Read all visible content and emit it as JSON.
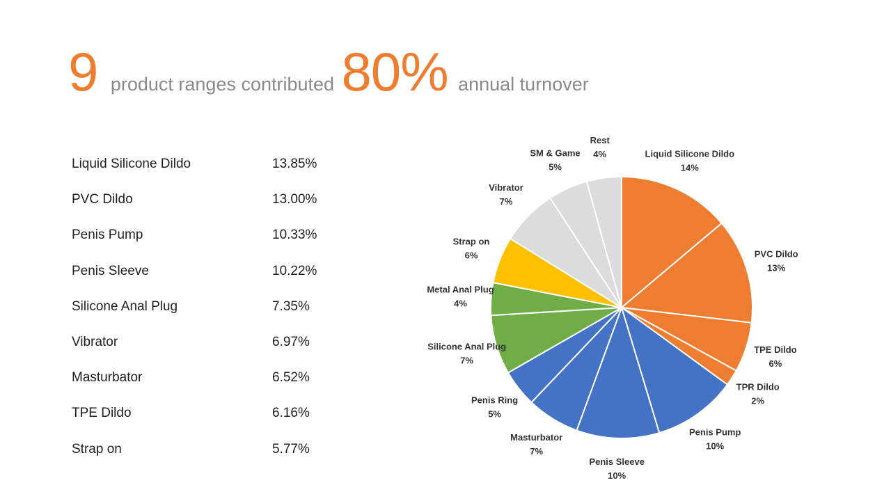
{
  "headline": {
    "count": "9",
    "text1": "product ranges contributed",
    "percent": "80%",
    "text2": "annual turnover"
  },
  "table": {
    "rows": [
      {
        "name": "Liquid Silicone Dildo",
        "value": "13.85%"
      },
      {
        "name": "PVC Dildo",
        "value": "13.00%"
      },
      {
        "name": "Penis Pump",
        "value": "10.33%"
      },
      {
        "name": "Penis Sleeve",
        "value": "10.22%"
      },
      {
        "name": "Silicone Anal Plug",
        "value": "7.35%"
      },
      {
        "name": "Vibrator",
        "value": "6.97%"
      },
      {
        "name": "Masturbator",
        "value": "6.52%"
      },
      {
        "name": "TPE Dildo",
        "value": "6.16%"
      },
      {
        "name": "Strap on",
        "value": "5.77%"
      }
    ]
  },
  "colors": {
    "accent": "#ED7D31",
    "orange": "#ED7D31",
    "blue": "#4472C4",
    "green": "#70AD47",
    "yellow": "#FFC000",
    "gray": "#DCDCDC"
  },
  "chart_data": {
    "type": "pie",
    "title": "",
    "start_angle_deg": 0,
    "direction": "clockwise",
    "slices": [
      {
        "name": "Liquid Silicone Dildo",
        "value": 13.85,
        "label": "14%",
        "color": "#ED7D31"
      },
      {
        "name": "PVC Dildo",
        "value": 13.0,
        "label": "13%",
        "color": "#ED7D31"
      },
      {
        "name": "TPE Dildo",
        "value": 6.16,
        "label": "6%",
        "color": "#ED7D31"
      },
      {
        "name": "TPR Dildo",
        "value": 2.0,
        "label": "2%",
        "color": "#ED7D31"
      },
      {
        "name": "Penis Pump",
        "value": 10.33,
        "label": "10%",
        "color": "#4472C4"
      },
      {
        "name": "Penis Sleeve",
        "value": 10.22,
        "label": "10%",
        "color": "#4472C4"
      },
      {
        "name": "Masturbator",
        "value": 6.52,
        "label": "7%",
        "color": "#4472C4"
      },
      {
        "name": "Penis Ring",
        "value": 4.6,
        "label": "5%",
        "color": "#4472C4"
      },
      {
        "name": "Silicone Anal Plug",
        "value": 7.35,
        "label": "7%",
        "color": "#70AD47"
      },
      {
        "name": "Metal Anal Plug",
        "value": 4.0,
        "label": "4%",
        "color": "#70AD47"
      },
      {
        "name": "Strap on",
        "value": 5.77,
        "label": "6%",
        "color": "#FFC000"
      },
      {
        "name": "Vibrator",
        "value": 6.97,
        "label": "7%",
        "color": "#DCDCDC"
      },
      {
        "name": "SM & Game",
        "value": 4.9,
        "label": "5%",
        "color": "#DCDCDC"
      },
      {
        "name": "Rest",
        "value": 4.3,
        "label": "4%",
        "color": "#DCDCDC"
      }
    ]
  }
}
